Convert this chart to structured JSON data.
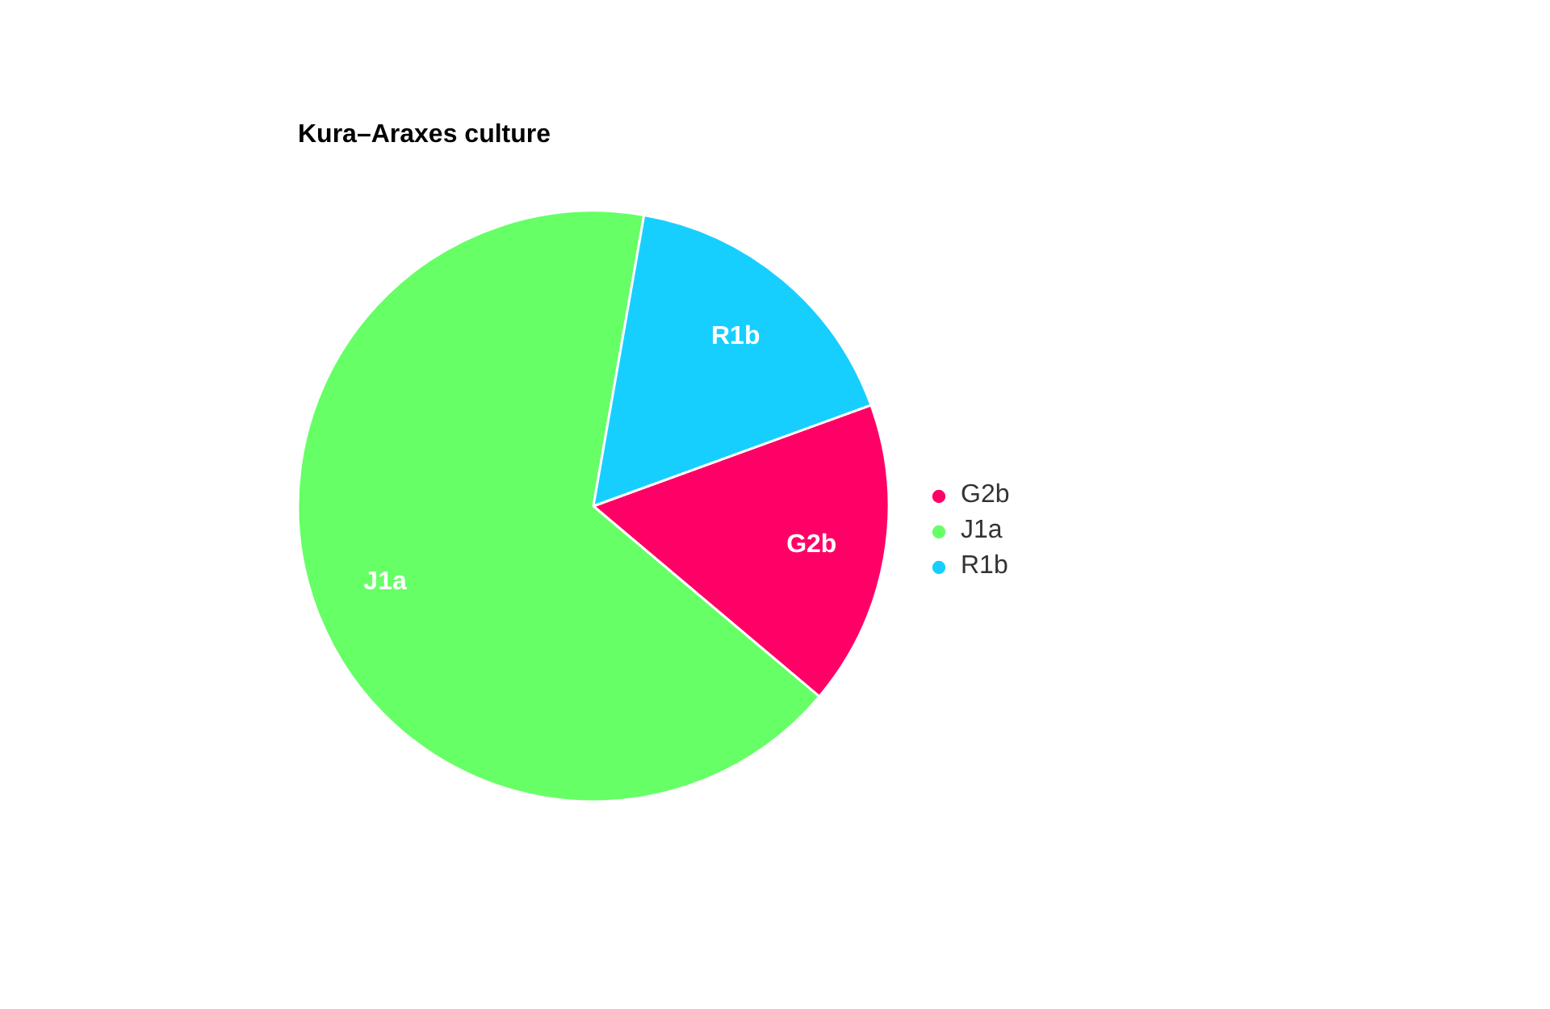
{
  "chart_data": {
    "type": "pie",
    "title": "Kura–Araxes culture",
    "categories": [
      "G2b",
      "J1a",
      "R1b"
    ],
    "values": [
      16.7,
      66.6,
      16.7
    ],
    "colors": [
      "#ff0066",
      "#66ff66",
      "#17cfff"
    ],
    "legend": "right"
  }
}
